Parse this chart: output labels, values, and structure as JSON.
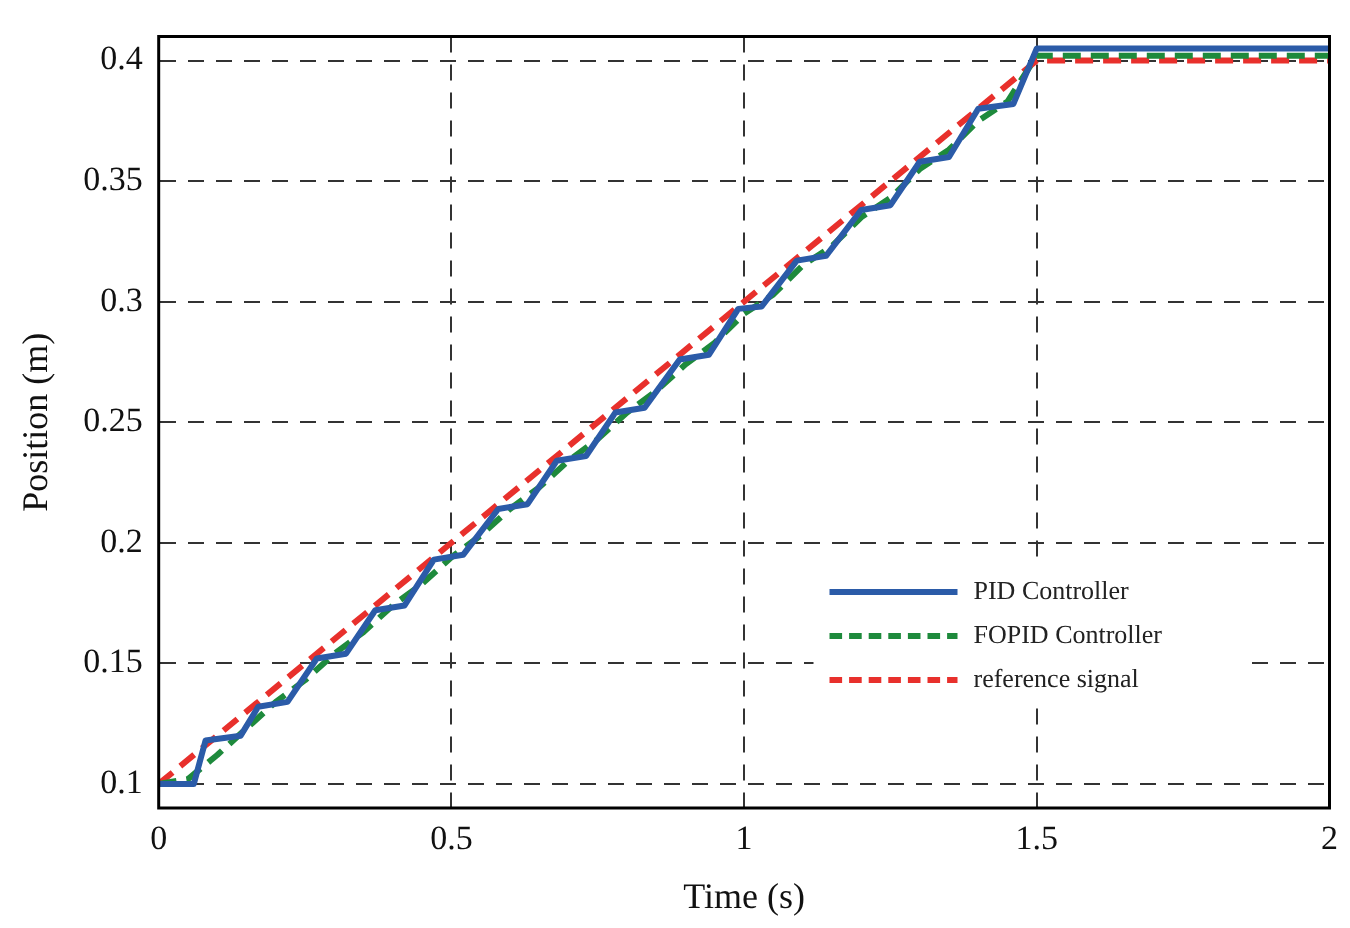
{
  "chart_data": {
    "type": "line",
    "xlabel": "Time (s)",
    "ylabel": "Position (m)",
    "xlim": [
      0,
      2
    ],
    "xticks": [
      0,
      0.5,
      1,
      1.5,
      2
    ],
    "ylim": [
      0.09,
      0.41
    ],
    "yticks": [
      0.1,
      0.15,
      0.2,
      0.25,
      0.3,
      0.35,
      0.4
    ],
    "grid": true,
    "legend": "bottom right",
    "series": [
      {
        "name": "PID Controller",
        "color": "#2b5ba8",
        "line_style": "solid",
        "x": [
          0,
          0.06,
          0.08,
          0.14,
          0.17,
          0.22,
          0.27,
          0.32,
          0.37,
          0.42,
          0.47,
          0.52,
          0.58,
          0.63,
          0.68,
          0.73,
          0.78,
          0.83,
          0.89,
          0.94,
          0.99,
          1.03,
          1.09,
          1.14,
          1.2,
          1.25,
          1.3,
          1.35,
          1.4,
          1.46,
          1.5,
          2
        ],
        "values": [
          0.1,
          0.1,
          0.118,
          0.12,
          0.132,
          0.134,
          0.152,
          0.154,
          0.172,
          0.174,
          0.193,
          0.195,
          0.214,
          0.216,
          0.234,
          0.236,
          0.254,
          0.256,
          0.276,
          0.278,
          0.297,
          0.298,
          0.317,
          0.319,
          0.338,
          0.34,
          0.358,
          0.36,
          0.38,
          0.382,
          0.405,
          0.405
        ]
      },
      {
        "name": "FOPID Controller",
        "color": "#1e8a3c",
        "line_style": "dashed",
        "x": [
          0,
          0.05,
          0.1,
          0.15,
          0.2,
          0.25,
          0.3,
          0.35,
          0.4,
          0.45,
          0.5,
          0.55,
          0.6,
          0.65,
          0.7,
          0.75,
          0.8,
          0.85,
          0.9,
          0.95,
          1,
          1.05,
          1.1,
          1.15,
          1.2,
          1.25,
          1.3,
          1.35,
          1.4,
          1.45,
          1.5,
          2
        ],
        "values": [
          0.1,
          0.102,
          0.112,
          0.123,
          0.134,
          0.143,
          0.154,
          0.163,
          0.174,
          0.183,
          0.194,
          0.203,
          0.214,
          0.223,
          0.234,
          0.243,
          0.254,
          0.263,
          0.274,
          0.283,
          0.295,
          0.303,
          0.315,
          0.323,
          0.335,
          0.343,
          0.355,
          0.363,
          0.375,
          0.383,
          0.402,
          0.402
        ]
      },
      {
        "name": "reference signal",
        "color": "#e8302c",
        "line_style": "dashed",
        "x": [
          0,
          1.5,
          2
        ],
        "values": [
          0.1,
          0.4,
          0.4
        ]
      }
    ]
  }
}
